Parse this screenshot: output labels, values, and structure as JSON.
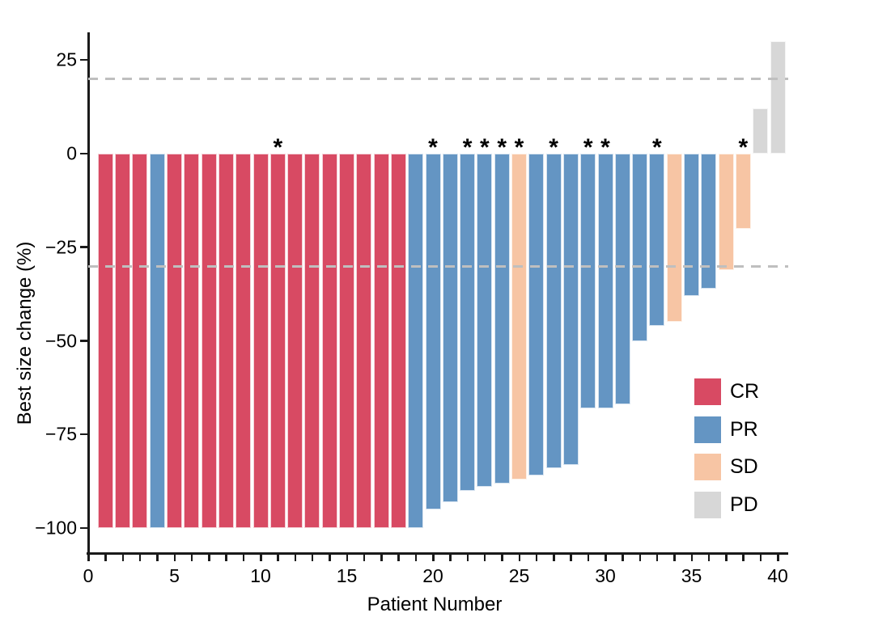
{
  "chart_data": {
    "type": "bar",
    "variant": "waterfall",
    "title": "",
    "xlabel": "Patient Number",
    "ylabel": "Best size change (%)",
    "xlim": [
      0,
      41
    ],
    "ylim": [
      -107,
      38
    ],
    "grid": false,
    "x_ticks": {
      "minor_step": 1,
      "major_values": [
        0,
        5,
        10,
        15,
        20,
        25,
        30,
        35,
        40
      ],
      "major_labels": [
        "0",
        "5",
        "10",
        "15",
        "20",
        "25",
        "30",
        "35",
        "40"
      ]
    },
    "y_ticks": {
      "values": [
        25,
        0,
        -25,
        -50,
        -75,
        -100
      ],
      "labels": [
        "25",
        "0",
        "−25",
        "−50",
        "−75",
        "−100"
      ]
    },
    "reference_lines": [
      {
        "y": 20,
        "style": "dashed",
        "color": "#bfbfbf"
      },
      {
        "y": -30,
        "style": "dashed",
        "color": "#bfbfbf"
      }
    ],
    "legend_position": "inside-bottom-right",
    "legend": [
      {
        "label": "CR",
        "color": "#d84a63"
      },
      {
        "label": "PR",
        "color": "#6495c3"
      },
      {
        "label": "SD",
        "color": "#f7c5a4"
      },
      {
        "label": "PD",
        "color": "#d7d7d7"
      }
    ],
    "annotation_symbol": "*",
    "annotation_meaning": "asterisk shown above bar",
    "patients": [
      {
        "patient": 1,
        "value": -100,
        "response": "CR",
        "star": false
      },
      {
        "patient": 2,
        "value": -100,
        "response": "CR",
        "star": false
      },
      {
        "patient": 3,
        "value": -100,
        "response": "CR",
        "star": false
      },
      {
        "patient": 4,
        "value": -100,
        "response": "PR",
        "star": false
      },
      {
        "patient": 5,
        "value": -100,
        "response": "CR",
        "star": false
      },
      {
        "patient": 6,
        "value": -100,
        "response": "CR",
        "star": false
      },
      {
        "patient": 7,
        "value": -100,
        "response": "CR",
        "star": false
      },
      {
        "patient": 8,
        "value": -100,
        "response": "CR",
        "star": false
      },
      {
        "patient": 9,
        "value": -100,
        "response": "CR",
        "star": false
      },
      {
        "patient": 10,
        "value": -100,
        "response": "CR",
        "star": false
      },
      {
        "patient": 11,
        "value": -100,
        "response": "CR",
        "star": true
      },
      {
        "patient": 12,
        "value": -100,
        "response": "CR",
        "star": false
      },
      {
        "patient": 13,
        "value": -100,
        "response": "CR",
        "star": false
      },
      {
        "patient": 14,
        "value": -100,
        "response": "CR",
        "star": false
      },
      {
        "patient": 15,
        "value": -100,
        "response": "CR",
        "star": false
      },
      {
        "patient": 16,
        "value": -100,
        "response": "CR",
        "star": false
      },
      {
        "patient": 17,
        "value": -100,
        "response": "CR",
        "star": false
      },
      {
        "patient": 18,
        "value": -100,
        "response": "CR",
        "star": false
      },
      {
        "patient": 19,
        "value": -100,
        "response": "PR",
        "star": false
      },
      {
        "patient": 20,
        "value": -95,
        "response": "PR",
        "star": true
      },
      {
        "patient": 21,
        "value": -93,
        "response": "PR",
        "star": false
      },
      {
        "patient": 22,
        "value": -90,
        "response": "PR",
        "star": true
      },
      {
        "patient": 23,
        "value": -89,
        "response": "PR",
        "star": true
      },
      {
        "patient": 24,
        "value": -88,
        "response": "PR",
        "star": true
      },
      {
        "patient": 25,
        "value": -87,
        "response": "SD",
        "star": true
      },
      {
        "patient": 26,
        "value": -86,
        "response": "PR",
        "star": false
      },
      {
        "patient": 27,
        "value": -84,
        "response": "PR",
        "star": true
      },
      {
        "patient": 28,
        "value": -83,
        "response": "PR",
        "star": false
      },
      {
        "patient": 29,
        "value": -68,
        "response": "PR",
        "star": true
      },
      {
        "patient": 30,
        "value": -68,
        "response": "PR",
        "star": true
      },
      {
        "patient": 31,
        "value": -67,
        "response": "PR",
        "star": false
      },
      {
        "patient": 32,
        "value": -50,
        "response": "PR",
        "star": false
      },
      {
        "patient": 33,
        "value": -46,
        "response": "PR",
        "star": true
      },
      {
        "patient": 34,
        "value": -45,
        "response": "SD",
        "star": false
      },
      {
        "patient": 35,
        "value": -38,
        "response": "PR",
        "star": false
      },
      {
        "patient": 36,
        "value": -36,
        "response": "PR",
        "star": false
      },
      {
        "patient": 37,
        "value": -31,
        "response": "SD",
        "star": false
      },
      {
        "patient": 38,
        "value": -20,
        "response": "SD",
        "star": true
      },
      {
        "patient": 39,
        "value": 12,
        "response": "PD",
        "star": false
      },
      {
        "patient": 40,
        "value": 30,
        "response": "PD",
        "star": false
      }
    ]
  }
}
